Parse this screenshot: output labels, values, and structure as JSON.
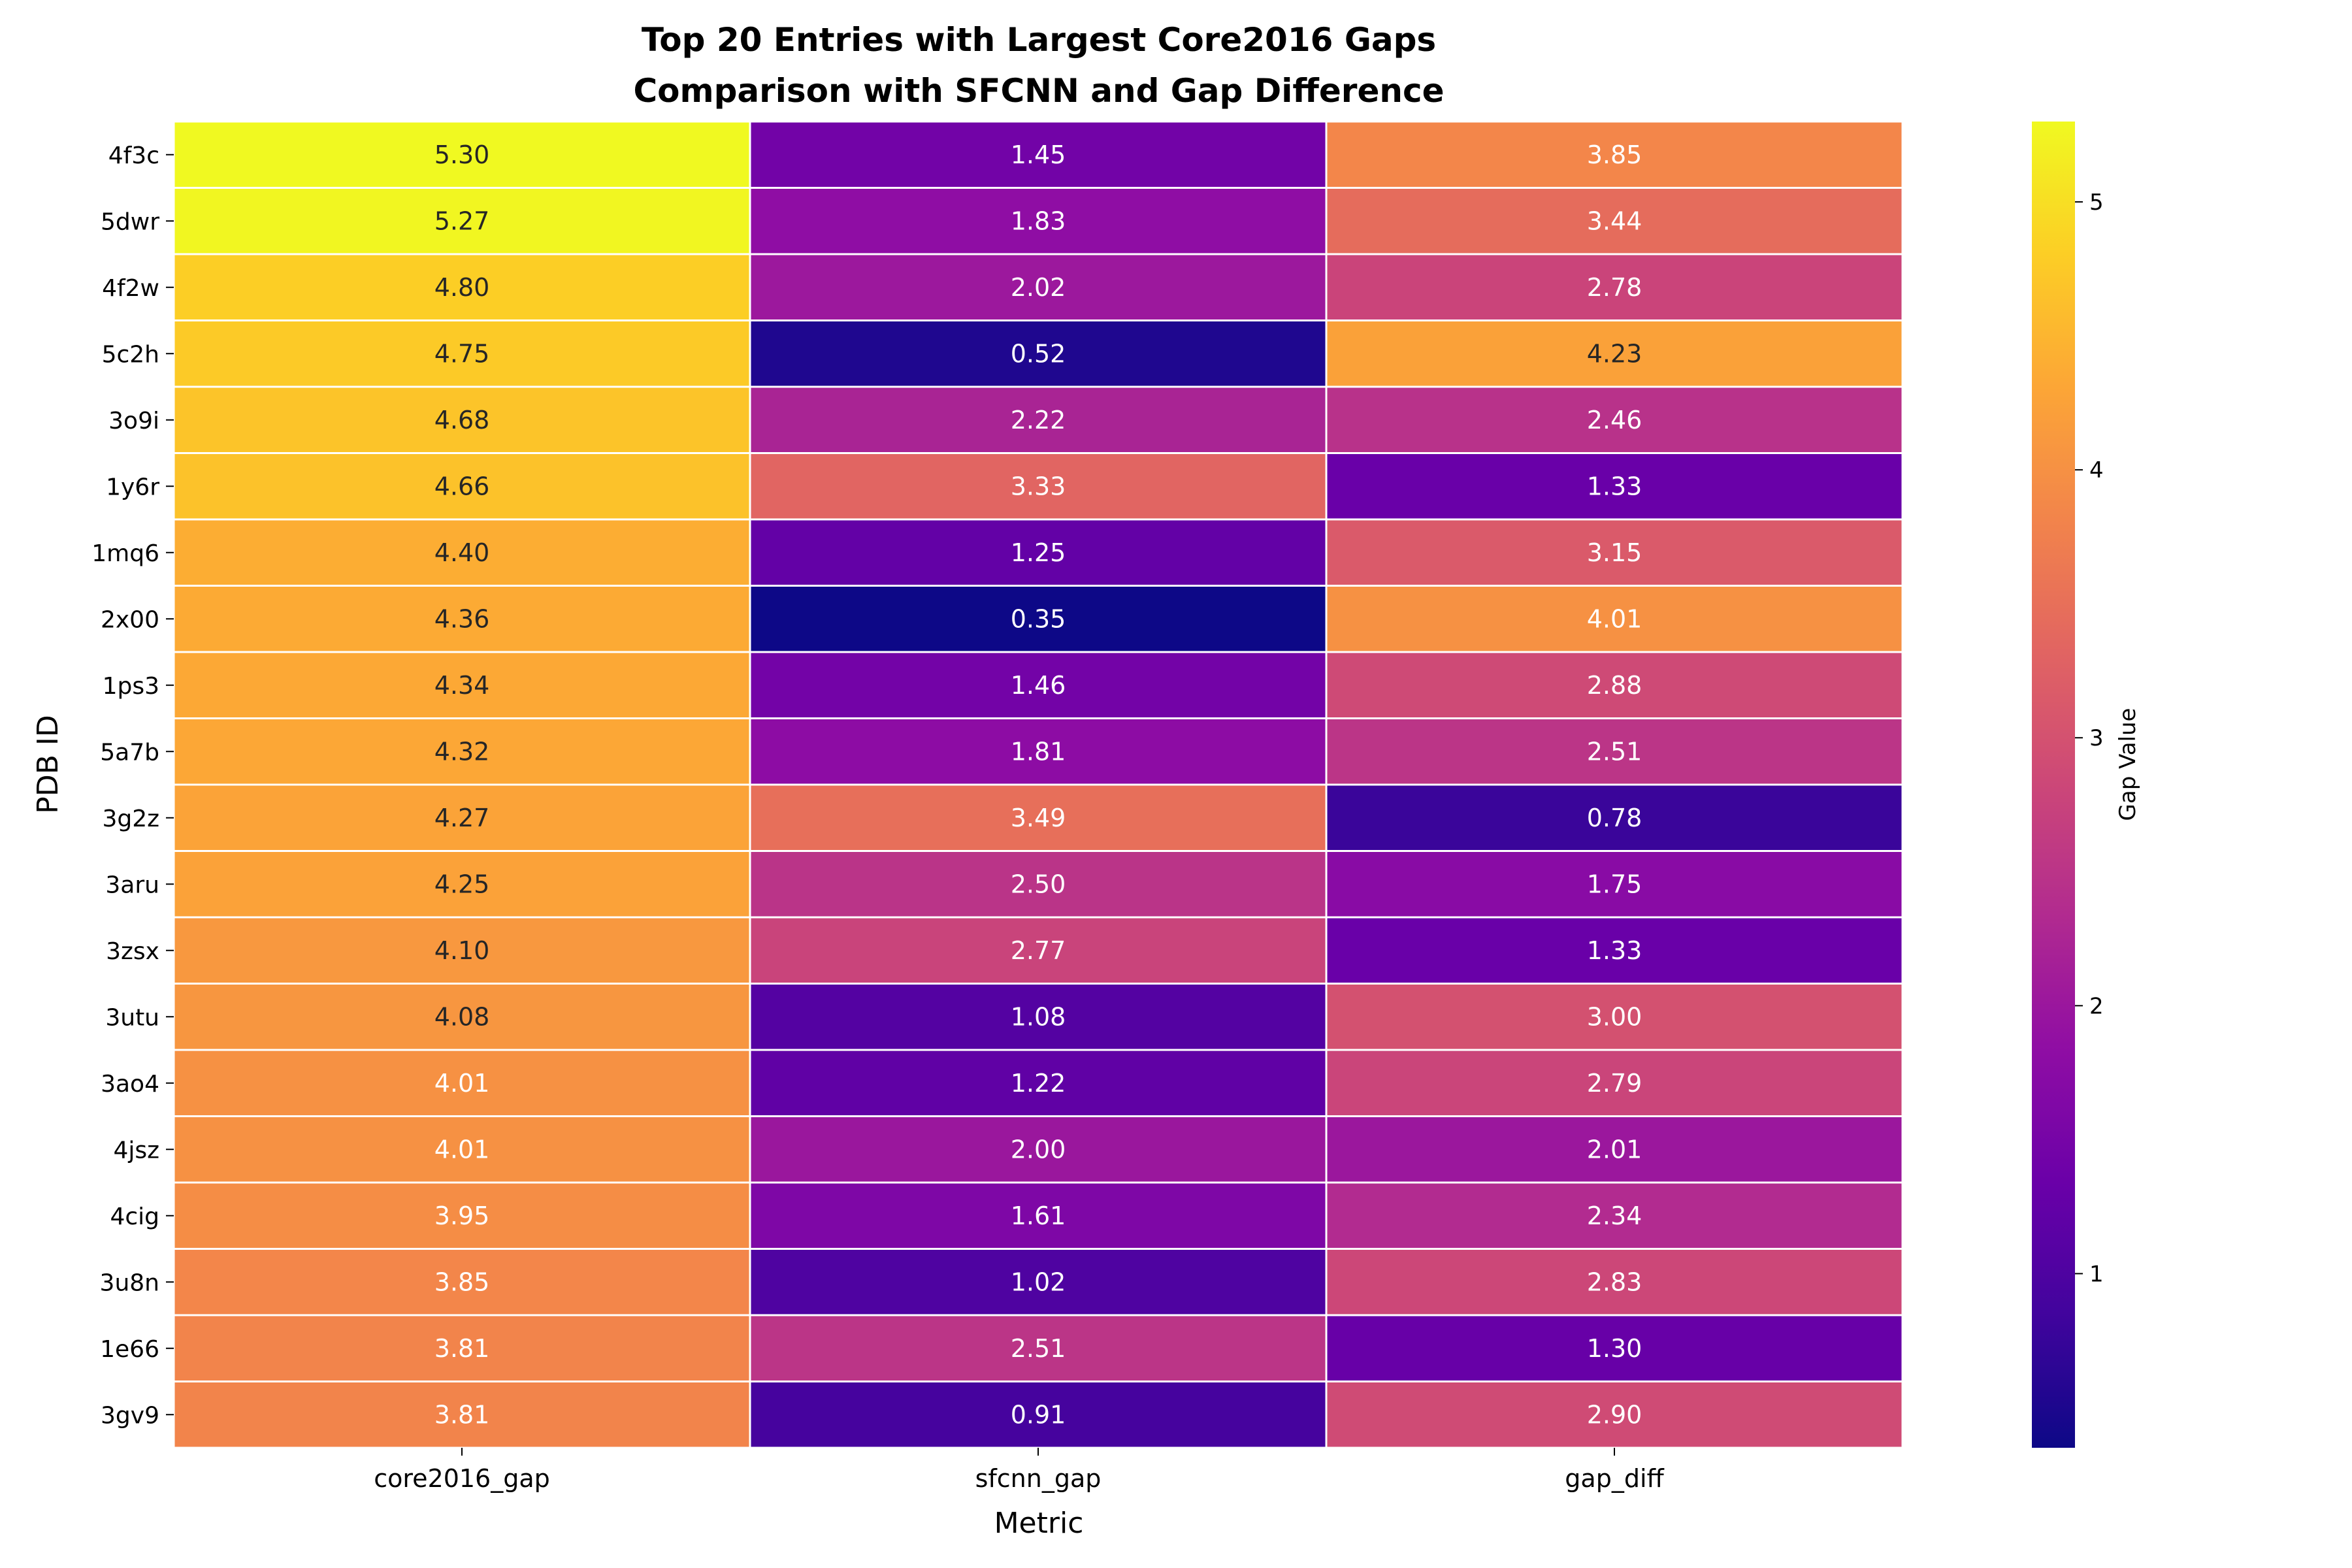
{
  "chart_data": {
    "type": "heatmap",
    "title": "Top 20 Entries with Largest Core2016 Gaps\nComparison with SFCNN and Gap Difference",
    "xlabel": "Metric",
    "ylabel": "PDB ID",
    "x_categories": [
      "core2016_gap",
      "sfcnn_gap",
      "gap_diff"
    ],
    "y_categories": [
      "4f3c",
      "5dwr",
      "4f2w",
      "5c2h",
      "3o9i",
      "1y6r",
      "1mq6",
      "2x00",
      "1ps3",
      "5a7b",
      "3g2z",
      "3aru",
      "3zsx",
      "3utu",
      "3ao4",
      "4jsz",
      "4cig",
      "3u8n",
      "1e66",
      "3gv9"
    ],
    "values": [
      [
        5.3,
        1.45,
        3.85
      ],
      [
        5.27,
        1.83,
        3.44
      ],
      [
        4.8,
        2.02,
        2.78
      ],
      [
        4.75,
        0.52,
        4.23
      ],
      [
        4.68,
        2.22,
        2.46
      ],
      [
        4.66,
        3.33,
        1.33
      ],
      [
        4.4,
        1.25,
        3.15
      ],
      [
        4.36,
        0.35,
        4.01
      ],
      [
        4.34,
        1.46,
        2.88
      ],
      [
        4.32,
        1.81,
        2.51
      ],
      [
        4.27,
        3.49,
        0.78
      ],
      [
        4.25,
        2.5,
        1.75
      ],
      [
        4.1,
        2.77,
        1.33
      ],
      [
        4.08,
        1.08,
        3.0
      ],
      [
        4.01,
        1.22,
        2.79
      ],
      [
        4.01,
        2.0,
        2.01
      ],
      [
        3.95,
        1.61,
        2.34
      ],
      [
        3.85,
        1.02,
        2.83
      ],
      [
        3.81,
        2.51,
        1.3
      ],
      [
        3.81,
        0.91,
        2.9
      ]
    ],
    "colormap": "plasma",
    "vmin": 0.35,
    "vmax": 5.3,
    "colorbar": {
      "label": "Gap Value",
      "ticks": [
        1,
        2,
        3,
        4,
        5
      ]
    },
    "annotations": true,
    "grid": false,
    "legend": "none",
    "colors": {
      "cell_border": "#ffffff",
      "dark_text": "#262626",
      "light_text": "#ffffff"
    }
  }
}
